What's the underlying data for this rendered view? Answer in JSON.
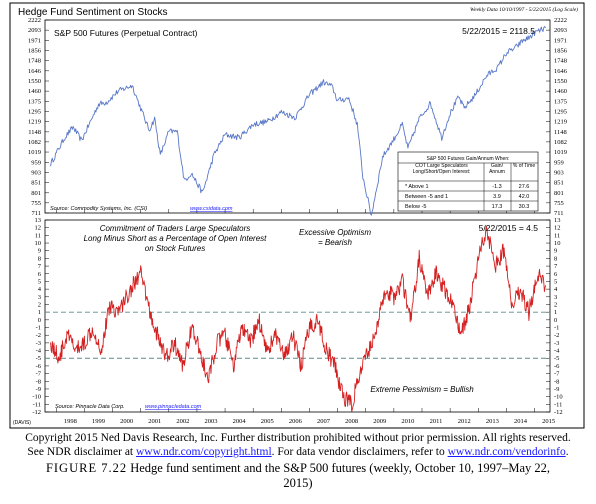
{
  "header": {
    "title": "Hedge Fund Sentiment on Stocks",
    "range_note": "Weekly Data 10/10/1997 - 5/22/2015 (Log Scale)"
  },
  "footer_code": "(DAVIS)",
  "caption": {
    "line1": "Copyright 2015 Ned Davis Research, Inc. Further distribution prohibited without prior permission. All rights reserved.",
    "line2_a": "See NDR disclaimer at ",
    "line2_link1": "www.ndr.com/copyright.html",
    "line2_b": ". For data vendor disclaimers, refer to ",
    "line2_link2": "www.ndr.com/vendorinfo",
    "line2_c": ".",
    "figure_label": "FIGURE 7.22",
    "figure_text_a": " Hedge fund sentiment and the S&P 500 futures (weekly, October 10, 1997–May 22,",
    "figure_text_b": "2015)"
  },
  "colors": {
    "price_line": "#5a78c8",
    "sentiment_line": "#d42020",
    "dashed_levels": "#5a8a8a",
    "link": "#1a1aff",
    "text": "#000000"
  },
  "chart_data": [
    {
      "type": "line",
      "title": "S&P 500 Futures (Perpetual Contract)",
      "annotation": "5/22/2015 = 2118.5",
      "source": "Source: Commodity Systems, Inc. (CSI)",
      "source_link": "www.csidata.com",
      "y_scale": "log",
      "ylim": [
        711,
        2222
      ],
      "y_ticks": [
        2222,
        2093,
        1971,
        1856,
        1748,
        1646,
        1550,
        1460,
        1375,
        1295,
        1219,
        1148,
        1082,
        1019,
        959,
        903,
        851,
        801,
        755,
        711
      ],
      "x_ticks": [
        "1998",
        "1999",
        "2000",
        "2001",
        "2002",
        "2003",
        "2004",
        "2005",
        "2006",
        "2007",
        "2008",
        "2009",
        "2010",
        "2011",
        "2012",
        "2013",
        "2014",
        "2015"
      ],
      "x": [
        1997.8,
        1998.3,
        1998.6,
        1998.9,
        1999.5,
        1999.8,
        2000.2,
        2000.7,
        2001.0,
        2001.3,
        2001.5,
        2001.7,
        2002.0,
        2002.3,
        2002.55,
        2002.8,
        2003.2,
        2003.6,
        2004.0,
        2004.5,
        2005.0,
        2005.5,
        2006.0,
        2006.5,
        2007.0,
        2007.5,
        2007.8,
        2008.0,
        2008.4,
        2008.7,
        2008.9,
        2009.2,
        2009.6,
        2010.0,
        2010.3,
        2010.5,
        2010.9,
        2011.3,
        2011.7,
        2012.0,
        2012.3,
        2012.5,
        2012.9,
        2013.3,
        2013.7,
        2014.0,
        2014.3,
        2014.6,
        2014.8,
        2015.0,
        2015.39
      ],
      "y": [
        950,
        1110,
        1180,
        1090,
        1350,
        1370,
        1460,
        1510,
        1320,
        1160,
        1240,
        1000,
        1150,
        1150,
        860,
        900,
        800,
        1000,
        1130,
        1110,
        1200,
        1220,
        1290,
        1250,
        1430,
        1540,
        1500,
        1380,
        1400,
        1200,
        880,
        700,
        990,
        1100,
        1200,
        1040,
        1240,
        1360,
        1110,
        1280,
        1410,
        1320,
        1430,
        1600,
        1680,
        1830,
        1880,
        1970,
        2000,
        2060,
        2118.5
      ],
      "gain_table": {
        "title": "S&P 500 Futures Gain/Annum When:",
        "headers": [
          "COT Large Speculators Long/Short/Open Interest:",
          "Gain/ Annum",
          "% of Time"
        ],
        "rows": [
          {
            "label": "* Above 1",
            "gain": "-1.3",
            "pct": "27.6"
          },
          {
            "label": "Between -5 and 1",
            "gain": "3.9",
            "pct": "42.0"
          },
          {
            "label": "Below -5",
            "gain": "17.3",
            "pct": "30.3"
          }
        ]
      }
    },
    {
      "type": "line",
      "title": "Commitment of Traders Large Speculators Long Minus Short as a Percentage of Open Interest on Stock Futures",
      "title_lines": [
        "Commitment of Traders Large Speculators",
        "Long Minus Short as a Percentage of Open Interest",
        "on Stock Futures"
      ],
      "annotation": "5/22/2015 = 4.5",
      "upper_label_lines": [
        "Excessive Optimism",
        "= Bearish"
      ],
      "lower_label": "Extreme Pessimism = Bullish",
      "source": "Source: Pinnacle Data Corp.",
      "source_link": "www.pinnacledata.com",
      "ylim": [
        -12,
        13
      ],
      "y_ticks": [
        13,
        12,
        11,
        10,
        9,
        8,
        7,
        6,
        5,
        4,
        3,
        2,
        1,
        0,
        -1,
        -2,
        -3,
        -4,
        -5,
        -6,
        -7,
        -8,
        -9,
        -10,
        -11,
        -12
      ],
      "thresholds": [
        1,
        -5
      ],
      "x_ticks": [
        "1998",
        "1999",
        "2000",
        "2001",
        "2002",
        "2003",
        "2004",
        "2005",
        "2006",
        "2007",
        "2008",
        "2009",
        "2010",
        "2011",
        "2012",
        "2013",
        "2014",
        "2015"
      ],
      "x": [
        1997.8,
        1998.1,
        1998.4,
        1998.7,
        1999.0,
        1999.3,
        1999.6,
        1999.9,
        2000.2,
        2000.5,
        2000.8,
        2001.0,
        2001.2,
        2001.4,
        2001.6,
        2001.9,
        2002.2,
        2002.5,
        2002.8,
        2003.1,
        2003.4,
        2003.7,
        2004.0,
        2004.3,
        2004.6,
        2004.9,
        2005.2,
        2005.5,
        2005.8,
        2006.1,
        2006.4,
        2006.7,
        2007.0,
        2007.3,
        2007.6,
        2007.9,
        2008.2,
        2008.5,
        2008.8,
        2009.1,
        2009.4,
        2009.7,
        2010.0,
        2010.3,
        2010.6,
        2010.9,
        2011.2,
        2011.5,
        2011.8,
        2012.1,
        2012.4,
        2012.7,
        2013.0,
        2013.3,
        2013.6,
        2013.9,
        2014.2,
        2014.5,
        2014.8,
        2015.1,
        2015.39
      ],
      "y": [
        -3,
        -5,
        -2,
        -4,
        -3,
        -1,
        -4,
        2,
        1,
        3,
        5,
        6,
        3,
        0,
        -2,
        -5,
        -3,
        -6,
        -1,
        -4,
        -8,
        -3,
        -2,
        -6,
        -1,
        -3,
        0,
        -4,
        -2,
        -5,
        -2,
        -6,
        -1,
        0,
        -4,
        -6,
        -10,
        -11,
        -7,
        -4,
        -1,
        4,
        3,
        5,
        0,
        8,
        3,
        6,
        4,
        2,
        -2,
        2,
        8,
        12,
        7,
        9,
        2,
        4,
        1,
        6,
        4.5
      ]
    }
  ]
}
